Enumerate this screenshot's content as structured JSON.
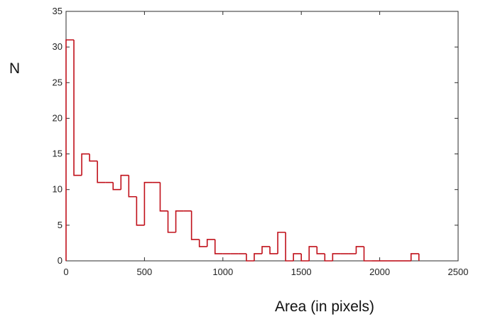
{
  "chart_data": {
    "type": "histogram",
    "title": "",
    "xlabel": "Area (in pixels)",
    "ylabel": "N",
    "xlim": [
      0,
      2500
    ],
    "ylim": [
      0,
      35
    ],
    "xticks": [
      0,
      500,
      1000,
      1500,
      2000,
      2500
    ],
    "yticks": [
      0,
      5,
      10,
      15,
      20,
      25,
      30,
      35
    ],
    "grid": false,
    "bin_width": 50,
    "bin_edges_start": 0,
    "counts": [
      31,
      12,
      15,
      14,
      11,
      11,
      10,
      12,
      9,
      5,
      11,
      11,
      7,
      4,
      7,
      7,
      3,
      2,
      3,
      1,
      1,
      1,
      1,
      0,
      1,
      2,
      1,
      4,
      0,
      1,
      0,
      2,
      1,
      0,
      1,
      1,
      1,
      2,
      0,
      0,
      0,
      0,
      0,
      0,
      1
    ],
    "line_color": "#c0101a",
    "series": [
      {
        "values_ref": "counts"
      }
    ]
  }
}
